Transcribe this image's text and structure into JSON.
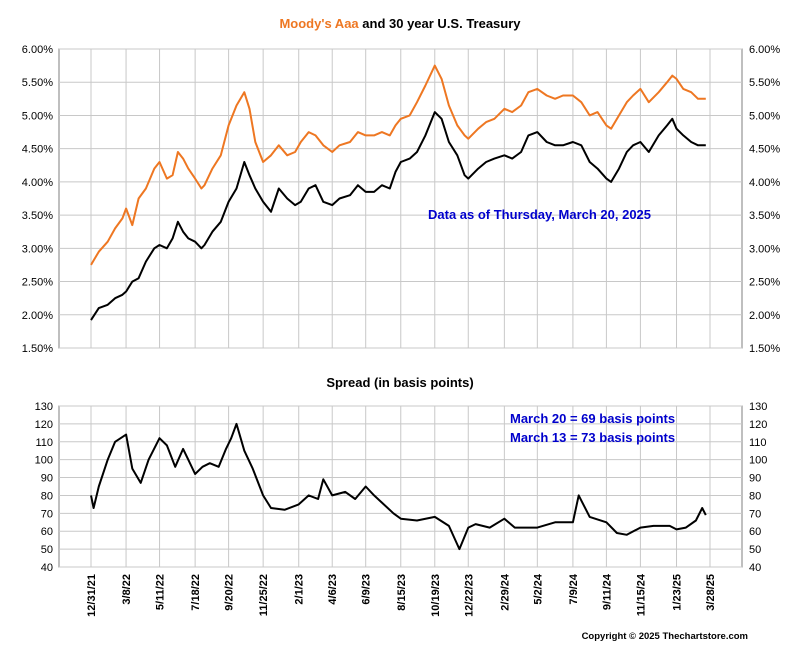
{
  "chart_data": [
    {
      "type": "line",
      "title": {
        "part1": "Moody's Aaa",
        "part2": " and 30 year U.S. Treasury"
      },
      "title_colors": {
        "part1": "#ee7722",
        "part2": "#000000"
      },
      "annotation": "Data as of Thursday, March 20, 2025",
      "yticks": [
        "1.50%",
        "2.00%",
        "2.50%",
        "3.00%",
        "3.50%",
        "4.00%",
        "4.50%",
        "5.00%",
        "5.50%",
        "6.00%"
      ],
      "ylim": [
        1.5,
        6.0
      ],
      "grid": true,
      "series": [
        {
          "color": "#ee7722",
          "points": [
            [
              "2021-12-31",
              2.75
            ],
            [
              "2022-01-15",
              2.95
            ],
            [
              "2022-02-01",
              3.1
            ],
            [
              "2022-02-15",
              3.3
            ],
            [
              "2022-03-01",
              3.45
            ],
            [
              "2022-03-08",
              3.6
            ],
            [
              "2022-03-20",
              3.35
            ],
            [
              "2022-04-01",
              3.75
            ],
            [
              "2022-04-15",
              3.9
            ],
            [
              "2022-05-01",
              4.2
            ],
            [
              "2022-05-11",
              4.3
            ],
            [
              "2022-05-25",
              4.05
            ],
            [
              "2022-06-05",
              4.1
            ],
            [
              "2022-06-15",
              4.45
            ],
            [
              "2022-06-25",
              4.35
            ],
            [
              "2022-07-05",
              4.2
            ],
            [
              "2022-07-18",
              4.05
            ],
            [
              "2022-07-30",
              3.9
            ],
            [
              "2022-08-05",
              3.95
            ],
            [
              "2022-08-20",
              4.2
            ],
            [
              "2022-09-05",
              4.4
            ],
            [
              "2022-09-20",
              4.85
            ],
            [
              "2022-10-05",
              5.15
            ],
            [
              "2022-10-20",
              5.35
            ],
            [
              "2022-10-30",
              5.1
            ],
            [
              "2022-11-10",
              4.6
            ],
            [
              "2022-11-25",
              4.3
            ],
            [
              "2022-12-10",
              4.4
            ],
            [
              "2022-12-25",
              4.55
            ],
            [
              "2023-01-10",
              4.4
            ],
            [
              "2023-01-25",
              4.45
            ],
            [
              "2023-02-05",
              4.6
            ],
            [
              "2023-02-20",
              4.75
            ],
            [
              "2023-03-05",
              4.7
            ],
            [
              "2023-03-20",
              4.55
            ],
            [
              "2023-04-06",
              4.45
            ],
            [
              "2023-04-20",
              4.55
            ],
            [
              "2023-05-10",
              4.6
            ],
            [
              "2023-05-25",
              4.75
            ],
            [
              "2023-06-09",
              4.7
            ],
            [
              "2023-06-25",
              4.7
            ],
            [
              "2023-07-10",
              4.75
            ],
            [
              "2023-07-25",
              4.7
            ],
            [
              "2023-08-05",
              4.85
            ],
            [
              "2023-08-15",
              4.95
            ],
            [
              "2023-09-01",
              5.0
            ],
            [
              "2023-09-15",
              5.2
            ],
            [
              "2023-10-01",
              5.45
            ],
            [
              "2023-10-19",
              5.75
            ],
            [
              "2023-11-01",
              5.55
            ],
            [
              "2023-11-15",
              5.15
            ],
            [
              "2023-12-01",
              4.85
            ],
            [
              "2023-12-15",
              4.7
            ],
            [
              "2023-12-22",
              4.65
            ],
            [
              "2024-01-10",
              4.8
            ],
            [
              "2024-01-25",
              4.9
            ],
            [
              "2024-02-10",
              4.95
            ],
            [
              "2024-02-29",
              5.1
            ],
            [
              "2024-03-15",
              5.05
            ],
            [
              "2024-04-01",
              5.15
            ],
            [
              "2024-04-15",
              5.35
            ],
            [
              "2024-05-02",
              5.4
            ],
            [
              "2024-05-20",
              5.3
            ],
            [
              "2024-06-05",
              5.25
            ],
            [
              "2024-06-20",
              5.3
            ],
            [
              "2024-07-09",
              5.3
            ],
            [
              "2024-07-25",
              5.2
            ],
            [
              "2024-08-10",
              5.0
            ],
            [
              "2024-08-25",
              5.05
            ],
            [
              "2024-09-11",
              4.85
            ],
            [
              "2024-09-20",
              4.8
            ],
            [
              "2024-10-05",
              5.0
            ],
            [
              "2024-10-20",
              5.2
            ],
            [
              "2024-11-01",
              5.3
            ],
            [
              "2024-11-15",
              5.4
            ],
            [
              "2024-12-01",
              5.2
            ],
            [
              "2024-12-20",
              5.35
            ],
            [
              "2025-01-05",
              5.5
            ],
            [
              "2025-01-15",
              5.6
            ],
            [
              "2025-01-23",
              5.55
            ],
            [
              "2025-02-05",
              5.4
            ],
            [
              "2025-02-20",
              5.35
            ],
            [
              "2025-03-05",
              5.25
            ],
            [
              "2025-03-20",
              5.25
            ]
          ]
        },
        {
          "color": "#000000",
          "points": [
            [
              "2021-12-31",
              1.92
            ],
            [
              "2022-01-15",
              2.1
            ],
            [
              "2022-02-01",
              2.15
            ],
            [
              "2022-02-15",
              2.25
            ],
            [
              "2022-03-01",
              2.3
            ],
            [
              "2022-03-08",
              2.35
            ],
            [
              "2022-03-20",
              2.5
            ],
            [
              "2022-04-01",
              2.55
            ],
            [
              "2022-04-15",
              2.8
            ],
            [
              "2022-05-01",
              3.0
            ],
            [
              "2022-05-11",
              3.05
            ],
            [
              "2022-05-25",
              3.0
            ],
            [
              "2022-06-05",
              3.15
            ],
            [
              "2022-06-15",
              3.4
            ],
            [
              "2022-06-25",
              3.25
            ],
            [
              "2022-07-05",
              3.15
            ],
            [
              "2022-07-18",
              3.1
            ],
            [
              "2022-07-30",
              3.0
            ],
            [
              "2022-08-05",
              3.05
            ],
            [
              "2022-08-20",
              3.25
            ],
            [
              "2022-09-05",
              3.4
            ],
            [
              "2022-09-20",
              3.7
            ],
            [
              "2022-10-05",
              3.9
            ],
            [
              "2022-10-20",
              4.3
            ],
            [
              "2022-10-30",
              4.1
            ],
            [
              "2022-11-10",
              3.9
            ],
            [
              "2022-11-25",
              3.7
            ],
            [
              "2022-12-10",
              3.55
            ],
            [
              "2022-12-25",
              3.9
            ],
            [
              "2023-01-10",
              3.75
            ],
            [
              "2023-01-25",
              3.65
            ],
            [
              "2023-02-05",
              3.7
            ],
            [
              "2023-02-20",
              3.9
            ],
            [
              "2023-03-05",
              3.95
            ],
            [
              "2023-03-20",
              3.7
            ],
            [
              "2023-04-06",
              3.65
            ],
            [
              "2023-04-20",
              3.75
            ],
            [
              "2023-05-10",
              3.8
            ],
            [
              "2023-05-25",
              3.95
            ],
            [
              "2023-06-09",
              3.85
            ],
            [
              "2023-06-25",
              3.85
            ],
            [
              "2023-07-10",
              3.95
            ],
            [
              "2023-07-25",
              3.9
            ],
            [
              "2023-08-05",
              4.15
            ],
            [
              "2023-08-15",
              4.3
            ],
            [
              "2023-09-01",
              4.35
            ],
            [
              "2023-09-15",
              4.45
            ],
            [
              "2023-10-01",
              4.7
            ],
            [
              "2023-10-19",
              5.05
            ],
            [
              "2023-11-01",
              4.95
            ],
            [
              "2023-11-15",
              4.6
            ],
            [
              "2023-12-01",
              4.4
            ],
            [
              "2023-12-15",
              4.1
            ],
            [
              "2023-12-22",
              4.05
            ],
            [
              "2024-01-10",
              4.2
            ],
            [
              "2024-01-25",
              4.3
            ],
            [
              "2024-02-10",
              4.35
            ],
            [
              "2024-02-29",
              4.4
            ],
            [
              "2024-03-15",
              4.35
            ],
            [
              "2024-04-01",
              4.45
            ],
            [
              "2024-04-15",
              4.7
            ],
            [
              "2024-05-02",
              4.75
            ],
            [
              "2024-05-20",
              4.6
            ],
            [
              "2024-06-05",
              4.55
            ],
            [
              "2024-06-20",
              4.55
            ],
            [
              "2024-07-09",
              4.6
            ],
            [
              "2024-07-25",
              4.55
            ],
            [
              "2024-08-10",
              4.3
            ],
            [
              "2024-08-25",
              4.2
            ],
            [
              "2024-09-11",
              4.05
            ],
            [
              "2024-09-20",
              4.0
            ],
            [
              "2024-10-05",
              4.2
            ],
            [
              "2024-10-20",
              4.45
            ],
            [
              "2024-11-01",
              4.55
            ],
            [
              "2024-11-15",
              4.6
            ],
            [
              "2024-12-01",
              4.45
            ],
            [
              "2024-12-20",
              4.7
            ],
            [
              "2025-01-05",
              4.85
            ],
            [
              "2025-01-15",
              4.95
            ],
            [
              "2025-01-23",
              4.8
            ],
            [
              "2025-02-05",
              4.7
            ],
            [
              "2025-02-20",
              4.6
            ],
            [
              "2025-03-05",
              4.55
            ],
            [
              "2025-03-20",
              4.55
            ]
          ]
        }
      ]
    },
    {
      "type": "line",
      "title": "Spread (in basis points)",
      "annotations": [
        "March 20 = 69 basis points",
        "March 13 = 73 basis points"
      ],
      "yticks": [
        "40",
        "50",
        "60",
        "70",
        "80",
        "90",
        "100",
        "110",
        "120",
        "130"
      ],
      "ylim": [
        40,
        130
      ],
      "grid": true,
      "x_tick_labels": [
        "12/31/21",
        "3/8/22",
        "5/11/22",
        "7/18/22",
        "9/20/22",
        "11/25/22",
        "2/1/23",
        "4/6/23",
        "6/9/23",
        "8/15/23",
        "10/19/23",
        "12/22/23",
        "2/29/24",
        "5/2/24",
        "7/9/24",
        "9/11/24",
        "11/15/24",
        "1/23/25",
        "3/28/25"
      ],
      "x_tick_dates": [
        "2021-12-31",
        "2022-03-08",
        "2022-05-11",
        "2022-07-18",
        "2022-09-20",
        "2022-11-25",
        "2023-02-01",
        "2023-04-06",
        "2023-06-09",
        "2023-08-15",
        "2023-10-19",
        "2023-12-22",
        "2024-02-29",
        "2024-05-02",
        "2024-07-09",
        "2024-09-11",
        "2024-11-15",
        "2025-01-23",
        "2025-03-28"
      ],
      "series": [
        {
          "color": "#000000",
          "points": [
            [
              "2021-12-31",
              80
            ],
            [
              "2022-01-05",
              73
            ],
            [
              "2022-01-15",
              85
            ],
            [
              "2022-02-01",
              100
            ],
            [
              "2022-02-15",
              110
            ],
            [
              "2022-03-08",
              114
            ],
            [
              "2022-03-20",
              95
            ],
            [
              "2022-04-05",
              87
            ],
            [
              "2022-04-20",
              100
            ],
            [
              "2022-05-11",
              112
            ],
            [
              "2022-05-25",
              108
            ],
            [
              "2022-06-10",
              96
            ],
            [
              "2022-06-25",
              106
            ],
            [
              "2022-07-05",
              100
            ],
            [
              "2022-07-18",
              92
            ],
            [
              "2022-08-01",
              96
            ],
            [
              "2022-08-15",
              98
            ],
            [
              "2022-09-01",
              96
            ],
            [
              "2022-09-15",
              106
            ],
            [
              "2022-09-25",
              112
            ],
            [
              "2022-10-05",
              120
            ],
            [
              "2022-10-20",
              105
            ],
            [
              "2022-11-05",
              95
            ],
            [
              "2022-11-25",
              80
            ],
            [
              "2022-12-10",
              73
            ],
            [
              "2023-01-05",
              72
            ],
            [
              "2023-02-01",
              75
            ],
            [
              "2023-02-20",
              80
            ],
            [
              "2023-03-10",
              78
            ],
            [
              "2023-03-20",
              89
            ],
            [
              "2023-04-06",
              80
            ],
            [
              "2023-05-01",
              82
            ],
            [
              "2023-05-20",
              78
            ],
            [
              "2023-06-09",
              85
            ],
            [
              "2023-06-25",
              80
            ],
            [
              "2023-07-10",
              76
            ],
            [
              "2023-08-01",
              70
            ],
            [
              "2023-08-15",
              67
            ],
            [
              "2023-09-15",
              66
            ],
            [
              "2023-10-19",
              68
            ],
            [
              "2023-11-15",
              63
            ],
            [
              "2023-12-05",
              50
            ],
            [
              "2023-12-22",
              62
            ],
            [
              "2024-01-05",
              64
            ],
            [
              "2024-02-01",
              62
            ],
            [
              "2024-02-29",
              67
            ],
            [
              "2024-03-20",
              62
            ],
            [
              "2024-05-02",
              62
            ],
            [
              "2024-06-05",
              65
            ],
            [
              "2024-07-09",
              65
            ],
            [
              "2024-07-20",
              80
            ],
            [
              "2024-08-10",
              68
            ],
            [
              "2024-09-11",
              65
            ],
            [
              "2024-10-01",
              59
            ],
            [
              "2024-10-20",
              58
            ],
            [
              "2024-11-15",
              62
            ],
            [
              "2024-12-10",
              63
            ],
            [
              "2025-01-10",
              63
            ],
            [
              "2025-01-23",
              61
            ],
            [
              "2025-02-10",
              62
            ],
            [
              "2025-03-01",
              66
            ],
            [
              "2025-03-13",
              73
            ],
            [
              "2025-03-20",
              69
            ]
          ]
        }
      ]
    }
  ],
  "footer": {
    "copyright": "Copyright © 2025 Thechartstore.com"
  }
}
